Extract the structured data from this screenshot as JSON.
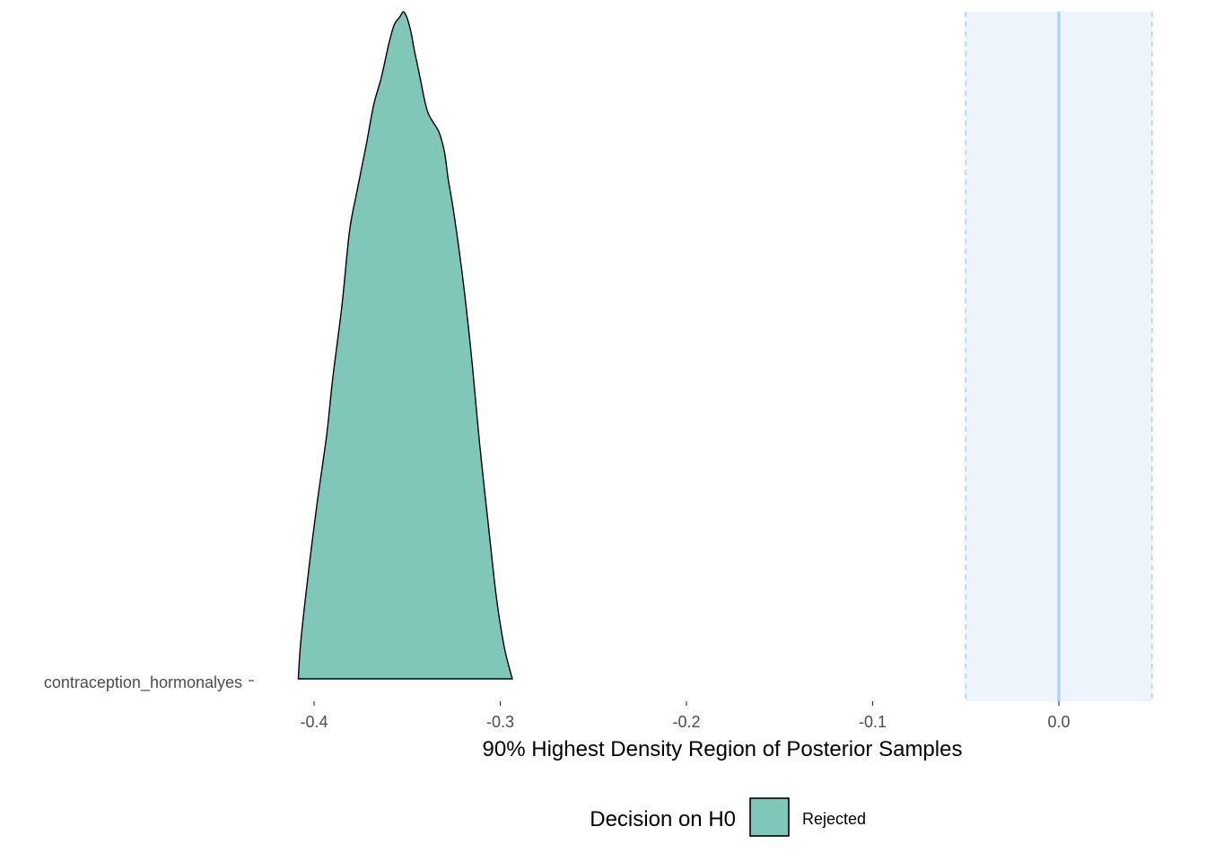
{
  "chart_data": {
    "type": "area",
    "subtype": "density-ridge",
    "xlabel": "90% Highest Density Region of Posterior Samples",
    "ylabel": "",
    "xlim": [
      -0.4,
      0.05
    ],
    "x_ticks": [
      -0.4,
      -0.3,
      -0.2,
      -0.1,
      0.0
    ],
    "x_tick_labels": [
      "-0.4",
      "-0.3",
      "-0.2",
      "-0.1",
      "0.0"
    ],
    "y_categories": [
      "contraception_hormonalyes"
    ],
    "rope": {
      "lower": -0.05,
      "upper": 0.05,
      "reference": 0.0,
      "fill_color": "#EDF4FC",
      "line_color": "#B3D4F0"
    },
    "series": [
      {
        "category": "contraception_hormonalyes",
        "decision": "Rejected",
        "fill_color": "#80C6B9",
        "density": {
          "x": [
            -0.4085,
            -0.407,
            -0.403,
            -0.399,
            -0.396,
            -0.393,
            -0.39,
            -0.385,
            -0.381,
            -0.377,
            -0.372,
            -0.368,
            -0.364,
            -0.36,
            -0.357,
            -0.354,
            -0.352,
            -0.35,
            -0.348,
            -0.346,
            -0.343,
            -0.339,
            -0.333,
            -0.33,
            -0.328,
            -0.325,
            -0.321,
            -0.318,
            -0.315,
            -0.311,
            -0.306,
            -0.302,
            -0.298,
            -0.295,
            -0.2935
          ],
          "y": [
            0.0,
            0.06,
            0.16,
            0.25,
            0.31,
            0.37,
            0.45,
            0.56,
            0.67,
            0.73,
            0.8,
            0.86,
            0.9,
            0.95,
            0.98,
            0.992,
            1.0,
            0.99,
            0.97,
            0.94,
            0.9,
            0.85,
            0.82,
            0.79,
            0.75,
            0.7,
            0.62,
            0.55,
            0.47,
            0.35,
            0.22,
            0.12,
            0.05,
            0.015,
            0.0
          ]
        }
      }
    ],
    "legend": {
      "title": "Decision on H0",
      "entries": [
        {
          "label": "Rejected",
          "color": "#80C6B9"
        }
      ],
      "position": "bottom"
    },
    "grid": false
  }
}
